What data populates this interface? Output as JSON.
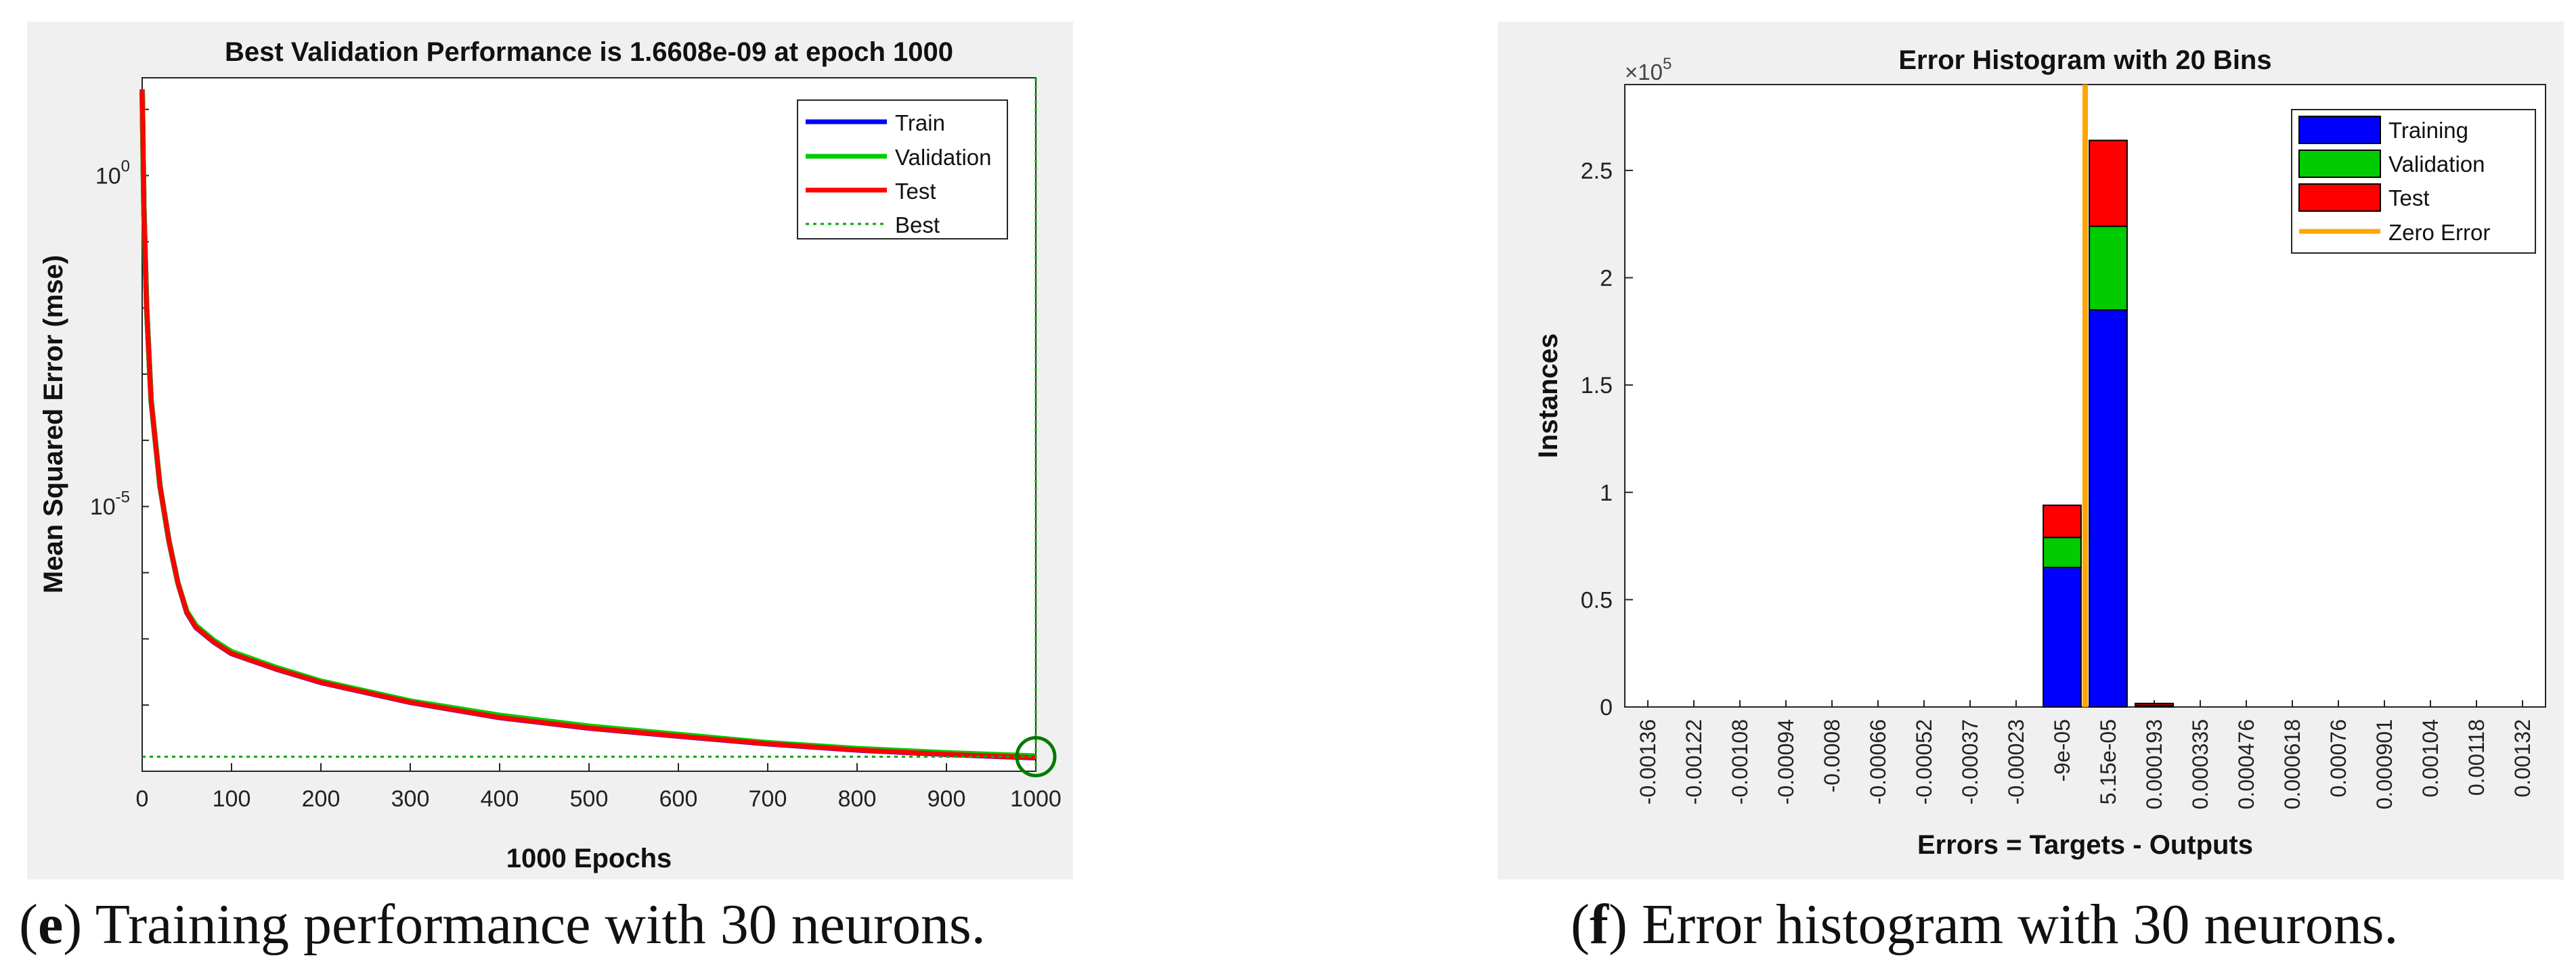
{
  "performance_caption": {
    "letter": "e",
    "text": "Training performance with 30 neurons."
  },
  "histogram_caption": {
    "letter": "f",
    "text": "Error histogram with 30 neurons."
  },
  "chart_data": [
    {
      "type": "line",
      "title": "Best Validation Performance is 1.6608e-09 at epoch 1000",
      "xlabel": "1000 Epochs",
      "ylabel": "Mean Squared Error  (mse)",
      "yscale": "log",
      "xlim": [
        0,
        1000
      ],
      "ylim": [
        1e-09,
        30
      ],
      "x_ticks": [
        0,
        100,
        200,
        300,
        400,
        500,
        600,
        700,
        800,
        900,
        1000
      ],
      "y_tick_labels": [
        {
          "base": "10",
          "exp": "0",
          "value": 1
        },
        {
          "base": "10",
          "exp": "-5",
          "value": 1e-05
        }
      ],
      "legend": {
        "position": "top-right",
        "entries": [
          "Train",
          "Validation",
          "Test",
          "Best"
        ]
      },
      "best": {
        "epoch": 1000,
        "value": 1.6608e-09
      },
      "series": [
        {
          "name": "Train",
          "color": "#0000ff",
          "x": [
            0,
            2,
            5,
            10,
            20,
            30,
            40,
            50,
            60,
            80,
            100,
            150,
            200,
            300,
            400,
            500,
            600,
            700,
            800,
            900,
            1000
          ],
          "y": [
            20,
            0.3,
            0.01,
            0.0004,
            2e-05,
            3e-06,
            7e-07,
            2.5e-07,
            1.5e-07,
            9e-08,
            6e-08,
            3.5e-08,
            2.2e-08,
            1.1e-08,
            6.5e-09,
            4.5e-09,
            3.4e-09,
            2.6e-09,
            2.1e-09,
            1.8e-09,
            1.6e-09
          ]
        },
        {
          "name": "Validation",
          "color": "#00cc00",
          "x": [
            0,
            2,
            5,
            10,
            20,
            30,
            40,
            50,
            60,
            80,
            100,
            150,
            200,
            300,
            400,
            500,
            600,
            700,
            800,
            900,
            1000
          ],
          "y": [
            20,
            0.3,
            0.01,
            0.0004,
            2e-05,
            3e-06,
            7e-07,
            2.6e-07,
            1.6e-07,
            9.5e-08,
            6.4e-08,
            3.7e-08,
            2.3e-08,
            1.15e-08,
            7e-09,
            4.8e-09,
            3.6e-09,
            2.7e-09,
            2.2e-09,
            1.9e-09,
            1.7e-09
          ]
        },
        {
          "name": "Test",
          "color": "#ff0000",
          "x": [
            0,
            2,
            5,
            10,
            20,
            30,
            40,
            50,
            60,
            80,
            100,
            150,
            200,
            300,
            400,
            500,
            600,
            700,
            800,
            900,
            1000
          ],
          "y": [
            20,
            0.3,
            0.01,
            0.0004,
            2e-05,
            3e-06,
            7e-07,
            2.5e-07,
            1.5e-07,
            9e-08,
            6e-08,
            3.5e-08,
            2.2e-08,
            1.1e-08,
            6.5e-09,
            4.5e-09,
            3.4e-09,
            2.6e-09,
            2.1e-09,
            1.8e-09,
            1.6e-09
          ]
        }
      ]
    },
    {
      "type": "bar",
      "stacked": true,
      "title": "Error Histogram with 20 Bins",
      "xlabel": "Errors = Targets - Outputs",
      "ylabel": "Instances",
      "y_multiplier": "×10",
      "y_multiplier_exp": "5",
      "ylim": [
        0,
        2.9
      ],
      "y_ticks": [
        0,
        0.5,
        1,
        1.5,
        2,
        2.5
      ],
      "y_tick_labels": [
        "0",
        "0.5",
        "1",
        "1.5",
        "2",
        "2.5"
      ],
      "categories": [
        "-0.00136",
        "-0.00122",
        "-0.00108",
        "-0.00094",
        "-0.0008",
        "-0.00066",
        "-0.00052",
        "-0.00037",
        "-0.00023",
        "-9e-05",
        "5.15e-05",
        "0.000193",
        "0.000335",
        "0.000476",
        "0.000618",
        "0.00076",
        "0.000901",
        "0.00104",
        "0.00118",
        "0.00132"
      ],
      "zero_error_position": 9.5,
      "legend": {
        "position": "top-right",
        "entries": [
          "Training",
          "Validation",
          "Test",
          "Zero Error"
        ]
      },
      "colors": {
        "Training": "#0000ff",
        "Validation": "#00cc00",
        "Test": "#ff0000",
        "Zero Error": "#ffa500"
      },
      "series": [
        {
          "name": "Training",
          "values": [
            0,
            0,
            0,
            0,
            0,
            0,
            0,
            0,
            0,
            0.65,
            1.85,
            0.006,
            0,
            0,
            0,
            0,
            0,
            0,
            0,
            0
          ]
        },
        {
          "name": "Validation",
          "values": [
            0,
            0,
            0,
            0,
            0,
            0,
            0,
            0,
            0,
            0.14,
            0.39,
            0.001,
            0,
            0,
            0,
            0,
            0,
            0,
            0,
            0
          ]
        },
        {
          "name": "Test",
          "values": [
            0,
            0,
            0,
            0,
            0,
            0,
            0,
            0,
            0,
            0.15,
            0.4,
            0.001,
            0,
            0,
            0,
            0,
            0,
            0,
            0,
            0
          ]
        }
      ]
    }
  ]
}
